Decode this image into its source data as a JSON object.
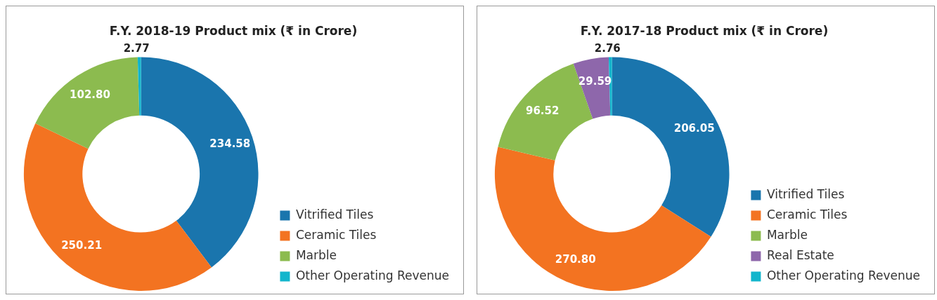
{
  "chart_data": [
    {
      "type": "donut",
      "title": "F.Y. 2018-19 Product mix (₹ in Crore)",
      "categories": [
        "Vitrified Tiles",
        "Ceramic Tiles",
        "Marble",
        "Other Operating Revenue"
      ],
      "values": [
        234.58,
        250.21,
        102.8,
        2.77
      ],
      "value_labels": [
        "234.58",
        "250.21",
        "102.80",
        "2.77"
      ],
      "colors": [
        "#1a75ad",
        "#f37321",
        "#8cbb4f",
        "#12b5cc"
      ],
      "legend": "right"
    },
    {
      "type": "donut",
      "title": "F.Y. 2017-18 Product mix (₹ in Crore)",
      "categories": [
        "Vitrified Tiles",
        "Ceramic Tiles",
        "Marble",
        "Real Estate",
        "Other Operating Revenue"
      ],
      "values": [
        206.05,
        270.8,
        96.52,
        29.59,
        2.76
      ],
      "value_labels": [
        "206.05",
        "270.80",
        "96.52",
        "29.59",
        "2.76"
      ],
      "colors": [
        "#1a75ad",
        "#f37321",
        "#8cbb4f",
        "#8e67ab",
        "#12b5cc"
      ],
      "legend": "right"
    }
  ]
}
